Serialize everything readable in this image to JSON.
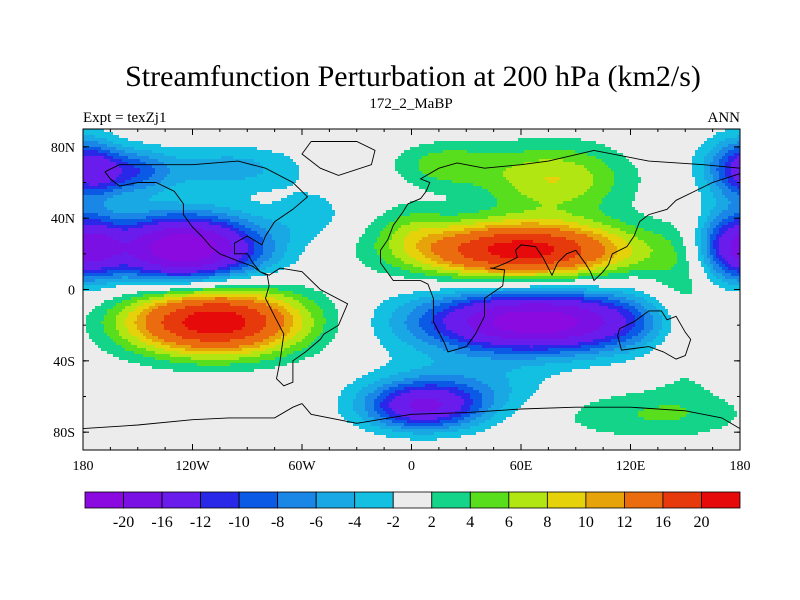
{
  "chart_data": {
    "type": "heatmap",
    "title": "Streamfunction Perturbation at 200 hPa (km2/s)",
    "left_string": "Expt = texZj1",
    "center_string": "172_2_MaBP",
    "right_string": "ANN",
    "x_range": [
      -180,
      180
    ],
    "y_range": [
      -90,
      90
    ],
    "x_ticks": [
      {
        "value": -180,
        "label": "180"
      },
      {
        "value": -120,
        "label": "120W"
      },
      {
        "value": -60,
        "label": "60W"
      },
      {
        "value": 0,
        "label": "0"
      },
      {
        "value": 60,
        "label": "60E"
      },
      {
        "value": 120,
        "label": "120E"
      },
      {
        "value": 180,
        "label": "180"
      }
    ],
    "y_ticks": [
      {
        "value": 80,
        "label": "80N"
      },
      {
        "value": 40,
        "label": "40N"
      },
      {
        "value": 0,
        "label": "0"
      },
      {
        "value": -40,
        "label": "40S"
      },
      {
        "value": -80,
        "label": "80S"
      }
    ],
    "levels": [
      -20,
      -16,
      -12,
      -10,
      -8,
      -6,
      -4,
      -2,
      2,
      4,
      6,
      8,
      10,
      12,
      16,
      20
    ],
    "level_labels": [
      "-20",
      "-16",
      "-12",
      "-10",
      "-8",
      "-6",
      "-4",
      "-2",
      "2",
      "4",
      "6",
      "8",
      "10",
      "12",
      "16",
      "20"
    ],
    "colors": [
      "#8a0ae0",
      "#7a10e4",
      "#6a1cec",
      "#2a28e8",
      "#0a5ae6",
      "#1a86e6",
      "#1aa8e4",
      "#14c0e2",
      "#ececec",
      "#14d48a",
      "#58de1c",
      "#b2e612",
      "#e6d20a",
      "#e6a40a",
      "#ea6c0e",
      "#e63a0c",
      "#e60a0a"
    ],
    "features": [
      {
        "lon": -125,
        "lat": 23,
        "amp": -24,
        "slon": 30,
        "slat": 13
      },
      {
        "lon": -155,
        "lat": 66,
        "amp": -9,
        "slon": 16,
        "slat": 9
      },
      {
        "lon": -100,
        "lat": 68,
        "amp": -5,
        "slon": 28,
        "slat": 9
      },
      {
        "lon": -55,
        "lat": 42,
        "amp": -3,
        "slon": 14,
        "slat": 10
      },
      {
        "lon": -108,
        "lat": -18,
        "amp": 23,
        "slon": 34,
        "slat": 13
      },
      {
        "lon": 60,
        "lat": 22,
        "amp": 22,
        "slon": 42,
        "slat": 11
      },
      {
        "lon": 78,
        "lat": 62,
        "amp": 8,
        "slon": 28,
        "slat": 14
      },
      {
        "lon": 18,
        "lat": 70,
        "amp": 5,
        "slon": 20,
        "slat": 9
      },
      {
        "lon": 0,
        "lat": 36,
        "amp": 3,
        "slon": 14,
        "slat": 10
      },
      {
        "lon": 68,
        "lat": -18,
        "amp": -23,
        "slon": 44,
        "slat": 12
      },
      {
        "lon": 6,
        "lat": -66,
        "amp": -14,
        "slon": 22,
        "slat": 9
      },
      {
        "lon": 25,
        "lat": -56,
        "amp": -5,
        "slon": 34,
        "slat": 12
      },
      {
        "lon": 130,
        "lat": -70,
        "amp": 4,
        "slon": 40,
        "slat": 10
      },
      {
        "lon": 150,
        "lat": -10,
        "amp": 4,
        "slon": 14,
        "slat": 30
      },
      {
        "lon": 172,
        "lat": 24,
        "amp": -11,
        "slon": 12,
        "slat": 14
      },
      {
        "lon": 175,
        "lat": 68,
        "amp": -7,
        "slon": 14,
        "slat": 12
      },
      {
        "lon": -172,
        "lat": 24,
        "amp": -8,
        "slon": 10,
        "slat": 12
      },
      {
        "lon": -175,
        "lat": 68,
        "amp": -6,
        "slon": 10,
        "slat": 12
      }
    ],
    "coastlines": [
      [
        [
          -55,
          83
        ],
        [
          -30,
          83
        ],
        [
          -20,
          78
        ],
        [
          -22,
          70
        ],
        [
          -40,
          64
        ],
        [
          -50,
          68
        ],
        [
          -60,
          76
        ],
        [
          -55,
          83
        ]
      ],
      [
        [
          -168,
          66
        ],
        [
          -160,
          70
        ],
        [
          -140,
          70
        ],
        [
          -120,
          70
        ],
        [
          -95,
          72
        ],
        [
          -80,
          68
        ],
        [
          -65,
          60
        ],
        [
          -57,
          52
        ],
        [
          -65,
          45
        ],
        [
          -75,
          38
        ],
        [
          -80,
          30
        ],
        [
          -82,
          25
        ],
        [
          -90,
          30
        ],
        [
          -97,
          26
        ],
        [
          -97,
          20
        ],
        [
          -90,
          20
        ],
        [
          -87,
          15
        ],
        [
          -83,
          10
        ],
        [
          -79,
          8
        ],
        [
          -78,
          2
        ],
        [
          -80,
          -5
        ],
        [
          -75,
          -15
        ],
        [
          -70,
          -25
        ],
        [
          -72,
          -40
        ],
        [
          -74,
          -50
        ],
        [
          -70,
          -54
        ],
        [
          -65,
          -52
        ],
        [
          -65,
          -40
        ],
        [
          -58,
          -35
        ],
        [
          -50,
          -28
        ],
        [
          -48,
          -25
        ],
        [
          -40,
          -20
        ],
        [
          -35,
          -8
        ],
        [
          -50,
          0
        ],
        [
          -60,
          10
        ],
        [
          -72,
          12
        ],
        [
          -78,
          8
        ],
        [
          -83,
          10
        ],
        [
          -87,
          13
        ],
        [
          -95,
          16
        ],
        [
          -105,
          20
        ],
        [
          -110,
          24
        ],
        [
          -115,
          30
        ],
        [
          -120,
          35
        ],
        [
          -125,
          42
        ],
        [
          -125,
          48
        ],
        [
          -130,
          55
        ],
        [
          -140,
          60
        ],
        [
          -150,
          60
        ],
        [
          -160,
          58
        ],
        [
          -165,
          62
        ],
        [
          -168,
          66
        ]
      ],
      [
        [
          -10,
          36
        ],
        [
          -5,
          43
        ],
        [
          -2,
          48
        ],
        [
          5,
          51
        ],
        [
          8,
          55
        ],
        [
          10,
          60
        ],
        [
          5,
          62
        ],
        [
          15,
          68
        ],
        [
          25,
          71
        ],
        [
          40,
          68
        ],
        [
          60,
          70
        ],
        [
          75,
          72
        ],
        [
          100,
          78
        ],
        [
          130,
          72
        ],
        [
          160,
          70
        ],
        [
          180,
          68
        ],
        [
          180,
          65
        ],
        [
          165,
          60
        ],
        [
          155,
          55
        ],
        [
          145,
          50
        ],
        [
          140,
          45
        ],
        [
          130,
          42
        ],
        [
          125,
          38
        ],
        [
          122,
          30
        ],
        [
          118,
          24
        ],
        [
          110,
          20
        ],
        [
          108,
          14
        ],
        [
          105,
          10
        ],
        [
          100,
          5
        ],
        [
          98,
          10
        ],
        [
          95,
          15
        ],
        [
          90,
          22
        ],
        [
          85,
          20
        ],
        [
          80,
          15
        ],
        [
          77,
          8
        ],
        [
          72,
          18
        ],
        [
          68,
          24
        ],
        [
          60,
          25
        ],
        [
          57,
          22
        ],
        [
          58,
          18
        ],
        [
          52,
          15
        ],
        [
          45,
          12
        ],
        [
          43,
          12
        ],
        [
          51,
          11
        ],
        [
          50,
          2
        ],
        [
          40,
          -5
        ],
        [
          40,
          -15
        ],
        [
          35,
          -25
        ],
        [
          30,
          -32
        ],
        [
          20,
          -35
        ],
        [
          18,
          -30
        ],
        [
          12,
          -18
        ],
        [
          12,
          -5
        ],
        [
          9,
          3
        ],
        [
          5,
          5
        ],
        [
          -5,
          5
        ],
        [
          -10,
          5
        ],
        [
          -17,
          15
        ],
        [
          -17,
          22
        ],
        [
          -13,
          28
        ],
        [
          -10,
          36
        ]
      ],
      [
        [
          114,
          -22
        ],
        [
          122,
          -18
        ],
        [
          130,
          -12
        ],
        [
          137,
          -12
        ],
        [
          140,
          -17
        ],
        [
          145,
          -15
        ],
        [
          150,
          -24
        ],
        [
          153,
          -28
        ],
        [
          150,
          -37
        ],
        [
          145,
          -39
        ],
        [
          138,
          -35
        ],
        [
          130,
          -32
        ],
        [
          115,
          -34
        ],
        [
          113,
          -26
        ],
        [
          114,
          -22
        ]
      ],
      [
        [
          -60,
          -64
        ],
        [
          -55,
          -70
        ],
        [
          -30,
          -75
        ],
        [
          0,
          -70
        ],
        [
          30,
          -69
        ],
        [
          60,
          -67
        ],
        [
          90,
          -66
        ],
        [
          120,
          -66
        ],
        [
          150,
          -68
        ],
        [
          170,
          -72
        ],
        [
          180,
          -78
        ],
        [
          180,
          -90
        ],
        [
          -180,
          -90
        ],
        [
          -180,
          -78
        ],
        [
          -150,
          -76
        ],
        [
          -120,
          -73
        ],
        [
          -100,
          -72
        ],
        [
          -75,
          -72
        ],
        [
          -65,
          -66
        ],
        [
          -60,
          -64
        ]
      ]
    ]
  }
}
